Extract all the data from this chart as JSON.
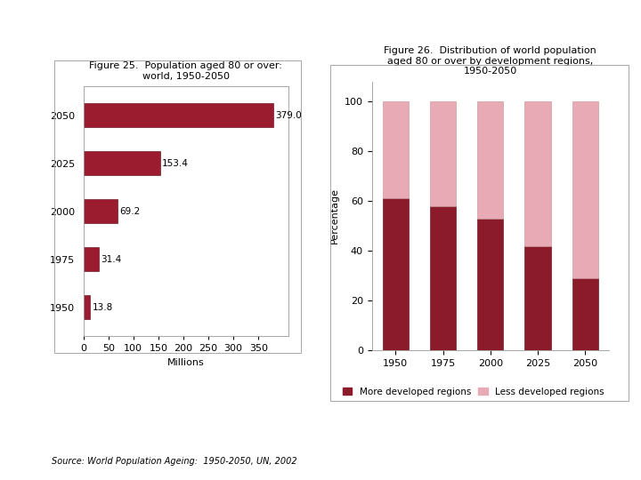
{
  "fig1": {
    "title": "Figure 25.  Population aged 80 or over:\nworld, 1950-2050",
    "years": [
      "2050",
      "2025",
      "2000",
      "1975",
      "1950"
    ],
    "values": [
      379.0,
      153.4,
      69.2,
      31.4,
      13.8
    ],
    "bar_color": "#9b1c2e",
    "xlabel": "Millions",
    "title_fontsize": 8,
    "xlabel_fontsize": 8,
    "label_fontsize": 7.5,
    "tick_fontsize": 8
  },
  "fig2": {
    "title": "Figure 26.  Distribution of world population\naged 80 or over by development regions,\n1950-2050",
    "years": [
      "1950",
      "1975",
      "2000",
      "2025",
      "2050"
    ],
    "more_developed": [
      61,
      58,
      53,
      42,
      29
    ],
    "less_developed": [
      39,
      42,
      47,
      58,
      71
    ],
    "color_more": "#8b1a2a",
    "color_less": "#e8aab4",
    "ylabel": "Percentage",
    "legend_more": "More developed regions",
    "legend_less": "Less developed regions",
    "title_fontsize": 8,
    "ylabel_fontsize": 8,
    "tick_fontsize": 8
  },
  "source_text": "Source: World Population Ageing:  1950-2050, UN, 2002",
  "background_color": "#ffffff"
}
